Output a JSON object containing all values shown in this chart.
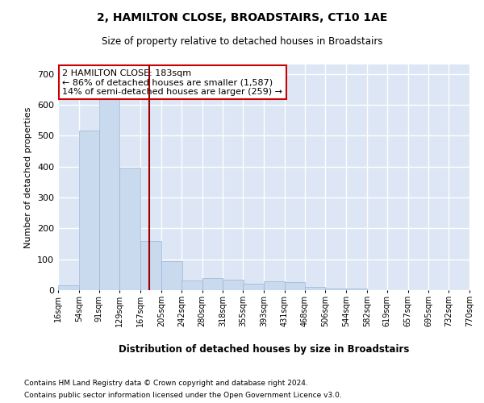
{
  "title": "2, HAMILTON CLOSE, BROADSTAIRS, CT10 1AE",
  "subtitle": "Size of property relative to detached houses in Broadstairs",
  "xlabel": "Distribution of detached houses by size in Broadstairs",
  "ylabel": "Number of detached properties",
  "bar_color": "#c9d9ee",
  "bar_edge_color": "#9ab5d5",
  "bg_color": "#dce6f5",
  "grid_color": "#ffffff",
  "vline_x": 183,
  "vline_color": "#990000",
  "annotation_text": "2 HAMILTON CLOSE: 183sqm\n← 86% of detached houses are smaller (1,587)\n14% of semi-detached houses are larger (259) →",
  "annotation_box_color": "#cc0000",
  "bins": [
    16,
    54,
    91,
    129,
    167,
    205,
    242,
    280,
    318,
    355,
    393,
    431,
    468,
    506,
    544,
    582,
    619,
    657,
    695,
    732,
    770
  ],
  "bin_labels": [
    "16sqm",
    "54sqm",
    "91sqm",
    "129sqm",
    "167sqm",
    "205sqm",
    "242sqm",
    "280sqm",
    "318sqm",
    "355sqm",
    "393sqm",
    "431sqm",
    "468sqm",
    "506sqm",
    "544sqm",
    "582sqm",
    "619sqm",
    "657sqm",
    "695sqm",
    "732sqm",
    "770sqm"
  ],
  "counts": [
    15,
    515,
    620,
    395,
    160,
    95,
    30,
    40,
    35,
    20,
    28,
    25,
    10,
    5,
    5,
    0,
    0,
    0,
    0,
    0
  ],
  "ylim": [
    0,
    730
  ],
  "yticks": [
    0,
    100,
    200,
    300,
    400,
    500,
    600,
    700
  ],
  "footer1": "Contains HM Land Registry data © Crown copyright and database right 2024.",
  "footer2": "Contains public sector information licensed under the Open Government Licence v3.0."
}
